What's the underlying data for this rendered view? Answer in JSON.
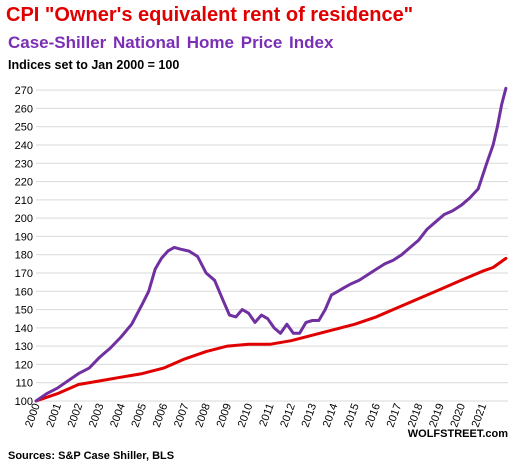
{
  "titles": {
    "line1": "CPI \"Owner's equivalent rent of residence\"",
    "line2": "Case-Shiller  National  Home Price Index",
    "line3": "Indices set to Jan 2000 = 100"
  },
  "footer": {
    "source": "Sources: S&P Case Shiller, BLS",
    "brand": "WOLFSTREET.com"
  },
  "chart_data": {
    "type": "line",
    "xlim": [
      2000,
      2022.2
    ],
    "ylim": [
      100,
      275
    ],
    "y_ticks": [
      100,
      110,
      120,
      130,
      140,
      150,
      160,
      170,
      180,
      190,
      200,
      210,
      220,
      230,
      240,
      250,
      260,
      270
    ],
    "x_tick_labels": [
      "2000",
      "2001",
      "2002",
      "2003",
      "2004",
      "2005",
      "2006",
      "2007",
      "2008",
      "2009",
      "2010",
      "2011",
      "2012",
      "2013",
      "2014",
      "2015",
      "2016",
      "2017",
      "2018",
      "2019",
      "2020",
      "2021"
    ],
    "grid": "horizontal",
    "series": [
      {
        "name": "Case-Shiller  National  Home Price Index",
        "color": "#7030a0",
        "points": [
          [
            2000.0,
            100
          ],
          [
            2000.5,
            104
          ],
          [
            2001.0,
            107
          ],
          [
            2001.5,
            111
          ],
          [
            2002.0,
            115
          ],
          [
            2002.5,
            118
          ],
          [
            2003.0,
            124
          ],
          [
            2003.5,
            129
          ],
          [
            2004.0,
            135
          ],
          [
            2004.5,
            142
          ],
          [
            2005.0,
            153
          ],
          [
            2005.3,
            160
          ],
          [
            2005.6,
            172
          ],
          [
            2005.9,
            178
          ],
          [
            2006.2,
            182
          ],
          [
            2006.5,
            184
          ],
          [
            2006.8,
            183
          ],
          [
            2007.2,
            182
          ],
          [
            2007.6,
            179
          ],
          [
            2008.0,
            170
          ],
          [
            2008.4,
            166
          ],
          [
            2008.8,
            155
          ],
          [
            2009.1,
            147
          ],
          [
            2009.4,
            146
          ],
          [
            2009.7,
            150
          ],
          [
            2010.0,
            148
          ],
          [
            2010.3,
            143
          ],
          [
            2010.6,
            147
          ],
          [
            2010.9,
            145
          ],
          [
            2011.2,
            140
          ],
          [
            2011.5,
            137
          ],
          [
            2011.8,
            142
          ],
          [
            2012.1,
            137
          ],
          [
            2012.4,
            137
          ],
          [
            2012.7,
            143
          ],
          [
            2013.0,
            144
          ],
          [
            2013.3,
            144
          ],
          [
            2013.6,
            150
          ],
          [
            2013.9,
            158
          ],
          [
            2014.2,
            160
          ],
          [
            2014.5,
            162
          ],
          [
            2014.8,
            164
          ],
          [
            2015.2,
            166
          ],
          [
            2015.6,
            169
          ],
          [
            2016.0,
            172
          ],
          [
            2016.4,
            175
          ],
          [
            2016.8,
            177
          ],
          [
            2017.2,
            180
          ],
          [
            2017.6,
            184
          ],
          [
            2018.0,
            188
          ],
          [
            2018.4,
            194
          ],
          [
            2018.8,
            198
          ],
          [
            2019.2,
            202
          ],
          [
            2019.6,
            204
          ],
          [
            2020.0,
            207
          ],
          [
            2020.4,
            211
          ],
          [
            2020.8,
            216
          ],
          [
            2021.2,
            230
          ],
          [
            2021.5,
            240
          ],
          [
            2021.7,
            250
          ],
          [
            2021.9,
            262
          ],
          [
            2022.1,
            271
          ]
        ]
      },
      {
        "name": "CPI \"Owner's equivalent rent of residence\"",
        "color": "#e00000",
        "points": [
          [
            2000.0,
            100
          ],
          [
            2001.0,
            104
          ],
          [
            2002.0,
            109
          ],
          [
            2003.0,
            111
          ],
          [
            2004.0,
            113
          ],
          [
            2005.0,
            115
          ],
          [
            2006.0,
            118
          ],
          [
            2007.0,
            123
          ],
          [
            2008.0,
            127
          ],
          [
            2009.0,
            130
          ],
          [
            2010.0,
            131
          ],
          [
            2011.0,
            131
          ],
          [
            2012.0,
            133
          ],
          [
            2013.0,
            136
          ],
          [
            2014.0,
            139
          ],
          [
            2015.0,
            142
          ],
          [
            2016.0,
            146
          ],
          [
            2017.0,
            151
          ],
          [
            2018.0,
            156
          ],
          [
            2019.0,
            161
          ],
          [
            2020.0,
            166
          ],
          [
            2021.0,
            171
          ],
          [
            2021.5,
            173
          ],
          [
            2022.1,
            178
          ]
        ]
      }
    ]
  }
}
